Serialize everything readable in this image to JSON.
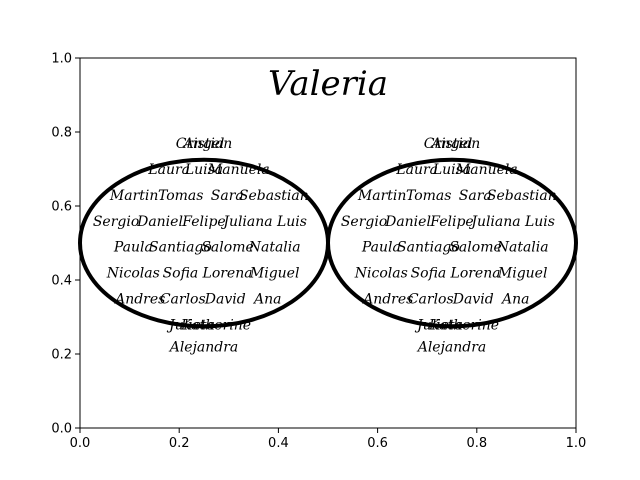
{
  "chart_data": {
    "type": "scatter",
    "title": "Valeria",
    "xlabel": "",
    "ylabel": "",
    "xlim": [
      0,
      1
    ],
    "ylim": [
      0,
      1
    ],
    "x_ticks": [
      "0.0",
      "0.2",
      "0.4",
      "0.6",
      "0.8",
      "1.0"
    ],
    "y_ticks": [
      "0.0",
      "0.2",
      "0.4",
      "0.6",
      "0.8",
      "1.0"
    ],
    "grid": false,
    "legend": "none",
    "circles": [
      {
        "center": [
          0.25,
          0.5
        ],
        "radius": 0.25
      },
      {
        "center": [
          0.75,
          0.5
        ],
        "radius": 0.25
      }
    ],
    "name_rows": [
      {
        "y": 0.77,
        "names": [
          "Angel",
          "Cristian"
        ]
      },
      {
        "y": 0.7,
        "names": [
          "Laura",
          "Luisa",
          "Manuela"
        ]
      },
      {
        "y": 0.63,
        "names": [
          "Martin",
          "Tomas",
          "Sara",
          "Sebastian"
        ]
      },
      {
        "y": 0.56,
        "names": [
          "Sergio",
          "Daniel",
          "Felipe",
          "Juliana",
          "Luis"
        ]
      },
      {
        "y": 0.49,
        "names": [
          "Paula",
          "Santiago",
          "Salome",
          "Natalia"
        ]
      },
      {
        "y": 0.42,
        "names": [
          "Nicolas",
          "Sofia",
          "Lorena",
          "Miguel"
        ]
      },
      {
        "y": 0.35,
        "names": [
          "Andres",
          "Carlos",
          "David",
          "Ana"
        ]
      },
      {
        "y": 0.28,
        "names": [
          "Julieta",
          "Katherine"
        ]
      },
      {
        "y": 0.22,
        "names": [
          "Alejandra"
        ]
      }
    ],
    "colors": {
      "circle": "#000000",
      "text": "#000000",
      "axes": "#000000"
    }
  }
}
